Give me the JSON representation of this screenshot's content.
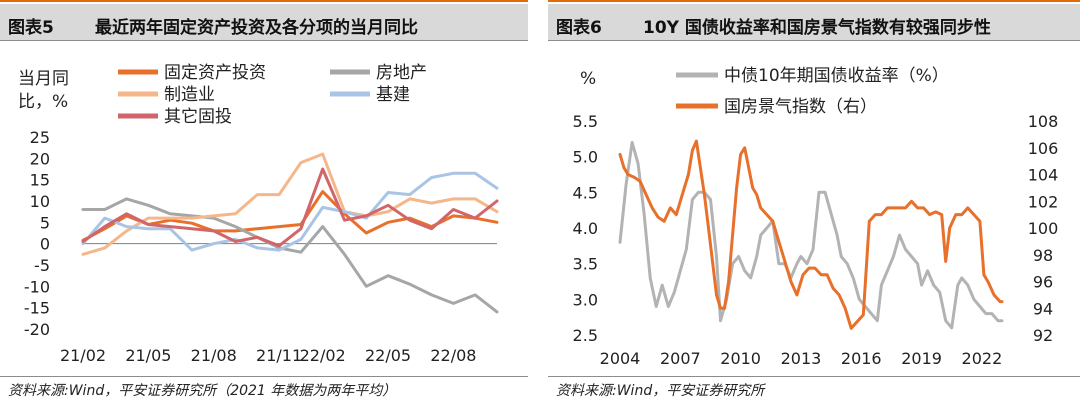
{
  "panels": [
    {
      "fig_no": "图表5",
      "title": "最近两年固定资产投资及各分项的当月同比",
      "source": "资料来源:Wind，平安证券研究所（2021 年数据为两年平均）"
    },
    {
      "fig_no": "图表6",
      "title": "10Y 国债收益率和国房景气指数有较强同步性",
      "source": "资料来源:Wind，平安证券研究所"
    }
  ],
  "chart_data": [
    {
      "type": "line",
      "ylabel": "当月同\n比，%",
      "ylim": [
        -20,
        25
      ],
      "yticks": [
        "25",
        "20",
        "15",
        "10",
        "5",
        "0",
        "-5",
        "-10",
        "-15",
        "-20"
      ],
      "x_ticks": [
        "21/02",
        "21/05",
        "21/08",
        "21/11",
        "22/02",
        "22/05",
        "22/08"
      ],
      "categories": [
        "21/02",
        "21/03",
        "21/04",
        "21/05",
        "21/06",
        "21/07",
        "21/08",
        "21/09",
        "21/10",
        "21/11",
        "21/12",
        "22/02",
        "22/03",
        "22/04",
        "22/05",
        "22/06",
        "22/07",
        "22/08",
        "22/09",
        "22/10"
      ],
      "legend": [
        "固定资产投资",
        "房地产",
        "制造业",
        "基建",
        "其它固投"
      ],
      "series": [
        {
          "name": "固定资产投资",
          "color": "#e8702a",
          "width": 3,
          "values": [
            0.8,
            3.5,
            6.5,
            4.5,
            5.5,
            4.8,
            3.0,
            3.0,
            3.5,
            4.0,
            4.5,
            12.2,
            7.0,
            2.5,
            5.0,
            6.0,
            4.0,
            6.5,
            6.0,
            5.0
          ]
        },
        {
          "name": "房地产",
          "color": "#a6a6a6",
          "width": 3,
          "values": [
            8.0,
            8.0,
            10.5,
            9.0,
            7.0,
            6.5,
            6.0,
            4.0,
            1.5,
            -1.0,
            -2.0,
            4.0,
            -2.5,
            -10.0,
            -7.5,
            -9.5,
            -12.0,
            -14.0,
            -12.0,
            -16.0
          ]
        },
        {
          "name": "制造业",
          "color": "#f5b78a",
          "width": 3,
          "values": [
            -2.5,
            -1.0,
            3.0,
            6.0,
            6.0,
            6.0,
            6.5,
            7.0,
            11.5,
            11.5,
            19.0,
            21.0,
            7.5,
            6.5,
            7.5,
            10.5,
            9.5,
            10.5,
            10.5,
            7.5
          ]
        },
        {
          "name": "基建",
          "color": "#a9c4e4",
          "width": 3,
          "values": [
            0.0,
            6.0,
            4.0,
            3.5,
            3.5,
            -1.5,
            0.0,
            1.0,
            -1.0,
            -1.5,
            1.0,
            8.5,
            7.5,
            6.0,
            12.0,
            11.5,
            15.5,
            16.5,
            16.5,
            13.0
          ]
        },
        {
          "name": "其它固投",
          "color": "#d1666a",
          "width": 3,
          "values": [
            0.5,
            4.0,
            7.0,
            4.5,
            4.0,
            3.5,
            3.0,
            0.5,
            1.5,
            -0.5,
            3.5,
            17.5,
            5.5,
            6.5,
            9.0,
            5.5,
            3.5,
            8.0,
            6.0,
            10.0
          ]
        }
      ]
    },
    {
      "type": "line",
      "ylabel_left": "%",
      "ylim_left": [
        2.5,
        5.5
      ],
      "yticks_left": [
        "5.5",
        "5.0",
        "4.5",
        "4.0",
        "3.5",
        "3.0",
        "2.5"
      ],
      "ylim_right": [
        92,
        108
      ],
      "yticks_right": [
        "108",
        "106",
        "104",
        "102",
        "100",
        "98",
        "96",
        "94",
        "92"
      ],
      "xlim": [
        2004,
        2023
      ],
      "x_ticks": [
        "2004",
        "2007",
        "2010",
        "2013",
        "2016",
        "2019",
        "2022"
      ],
      "legend": [
        "中债10年期国债收益率（%）",
        "国房景气指数（右）"
      ],
      "series": [
        {
          "name": "中债10年期国债收益率（%）",
          "axis": "left",
          "color": "#b3b3b3",
          "width": 3,
          "x": [
            2004.0,
            2004.3,
            2004.6,
            2004.9,
            2005.2,
            2005.5,
            2005.8,
            2006.1,
            2006.4,
            2006.7,
            2007.0,
            2007.3,
            2007.6,
            2007.9,
            2008.2,
            2008.5,
            2008.8,
            2009.0,
            2009.3,
            2009.6,
            2009.9,
            2010.2,
            2010.5,
            2010.8,
            2011.0,
            2011.3,
            2011.6,
            2011.9,
            2012.2,
            2012.5,
            2012.8,
            2013.0,
            2013.3,
            2013.6,
            2013.9,
            2014.2,
            2014.5,
            2014.8,
            2015.0,
            2015.3,
            2015.6,
            2015.9,
            2016.2,
            2016.5,
            2016.8,
            2017.0,
            2017.3,
            2017.6,
            2017.9,
            2018.2,
            2018.5,
            2018.8,
            2019.0,
            2019.3,
            2019.6,
            2019.9,
            2020.2,
            2020.5,
            2020.8,
            2021.0,
            2021.3,
            2021.6,
            2021.9,
            2022.2,
            2022.5,
            2022.8,
            2023.0
          ],
          "values": [
            3.8,
            4.6,
            5.2,
            4.9,
            4.2,
            3.3,
            2.9,
            3.2,
            2.9,
            3.1,
            3.4,
            3.7,
            4.4,
            4.5,
            4.5,
            4.4,
            3.6,
            2.7,
            3.0,
            3.5,
            3.6,
            3.4,
            3.3,
            3.6,
            3.9,
            4.0,
            4.1,
            3.5,
            3.5,
            3.3,
            3.5,
            3.6,
            3.5,
            3.7,
            4.5,
            4.5,
            4.2,
            3.9,
            3.6,
            3.5,
            3.3,
            3.0,
            2.9,
            2.8,
            2.7,
            3.2,
            3.4,
            3.6,
            3.9,
            3.7,
            3.6,
            3.5,
            3.2,
            3.4,
            3.2,
            3.1,
            2.7,
            2.6,
            3.2,
            3.3,
            3.2,
            3.0,
            2.9,
            2.8,
            2.8,
            2.7,
            2.7
          ]
        },
        {
          "name": "国房景气指数（右）",
          "axis": "right",
          "color": "#e8702a",
          "width": 3,
          "x": [
            2004.0,
            2004.2,
            2004.4,
            2004.7,
            2005.0,
            2005.3,
            2005.6,
            2005.9,
            2006.2,
            2006.5,
            2006.8,
            2007.0,
            2007.2,
            2007.4,
            2007.6,
            2007.8,
            2008.0,
            2008.2,
            2008.4,
            2008.6,
            2008.8,
            2009.0,
            2009.2,
            2009.4,
            2009.6,
            2009.8,
            2010.0,
            2010.2,
            2010.4,
            2010.6,
            2010.8,
            2011.0,
            2011.3,
            2011.6,
            2011.9,
            2012.2,
            2012.5,
            2012.8,
            2013.1,
            2013.4,
            2013.7,
            2014.0,
            2014.3,
            2014.6,
            2014.9,
            2015.2,
            2015.5,
            2015.8,
            2016.1,
            2016.4,
            2016.7,
            2017.0,
            2017.3,
            2017.6,
            2017.9,
            2018.2,
            2018.5,
            2018.8,
            2019.1,
            2019.4,
            2019.7,
            2020.0,
            2020.2,
            2020.4,
            2020.7,
            2021.0,
            2021.3,
            2021.6,
            2021.9,
            2022.1,
            2022.3,
            2022.6,
            2022.9,
            2023.0
          ],
          "values": [
            105.5,
            104.5,
            104.0,
            103.8,
            103.5,
            102.5,
            101.5,
            100.8,
            100.5,
            101.5,
            101.0,
            102.0,
            103.0,
            104.0,
            105.8,
            106.5,
            104.5,
            102.5,
            100.0,
            97.5,
            95.0,
            94.0,
            94.0,
            96.0,
            99.5,
            103.0,
            105.5,
            106.0,
            104.5,
            103.0,
            102.5,
            101.5,
            101.0,
            100.5,
            99.0,
            97.5,
            96.0,
            95.0,
            96.5,
            97.0,
            97.0,
            96.5,
            96.5,
            95.5,
            95.0,
            94.0,
            92.5,
            93.0,
            93.5,
            100.5,
            101.0,
            101.0,
            101.5,
            101.5,
            101.5,
            101.5,
            102.0,
            101.5,
            101.5,
            101.0,
            101.2,
            101.0,
            97.5,
            100.0,
            101.0,
            101.0,
            101.5,
            101.0,
            100.5,
            96.5,
            96.0,
            95.0,
            94.5,
            94.5
          ]
        }
      ]
    }
  ]
}
